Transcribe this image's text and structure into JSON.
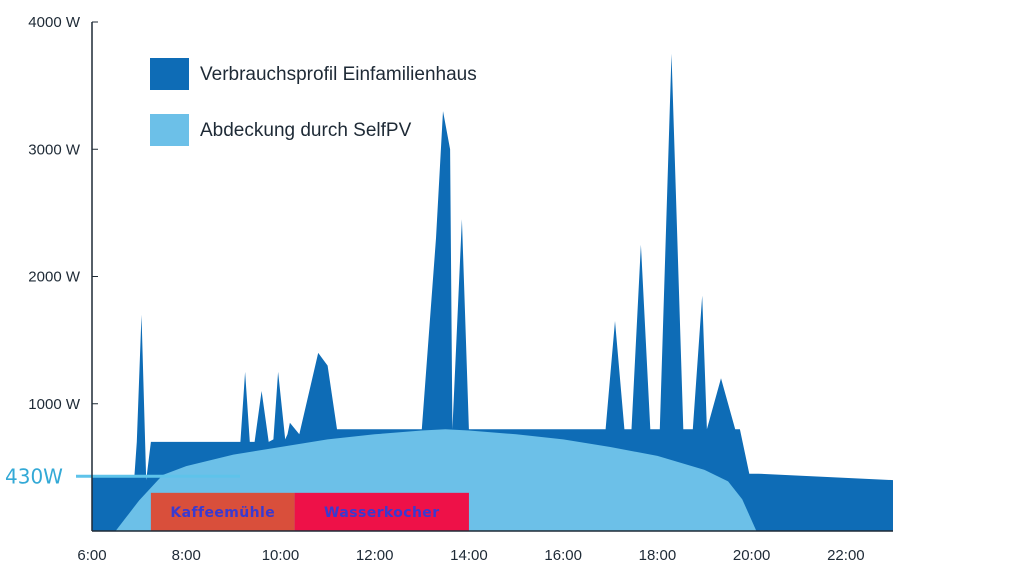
{
  "colors": {
    "consumption": "#0e6cb6",
    "coverage": "#6cc0e8",
    "axis": "#1e2a36",
    "reference_line": "#5ec3ea",
    "reference_text": "#33a9d6",
    "box_kaffeemuehle": "#d94f3b",
    "box_wasserkocher": "#ee1148",
    "box_text": "#3a3ad0"
  },
  "chart_data": {
    "type": "area",
    "title": "",
    "xlabel": "",
    "ylabel": "",
    "xlim": [
      6,
      23
    ],
    "ylim": [
      0,
      4000
    ],
    "grid": false,
    "legend_position": "top-left",
    "x_ticks": [
      "6:00",
      "8:00",
      "10:00",
      "12:00",
      "14:00",
      "16:00",
      "18:00",
      "20:00",
      "22:00"
    ],
    "x_tick_values": [
      6,
      8,
      10,
      12,
      14,
      16,
      18,
      20,
      22
    ],
    "y_ticks": [
      "4000 W",
      "3000 W",
      "2000 W",
      "1000 W"
    ],
    "y_tick_values": [
      4000,
      3000,
      2000,
      1000
    ],
    "legend": [
      {
        "label": "Verbrauchsprofil Einfamilienhaus",
        "color": "#0e6cb6"
      },
      {
        "label": "Abdeckung durch SelfPV",
        "color": "#6cc0e8"
      }
    ],
    "series": [
      {
        "name": "Verbrauchsprofil Einfamilienhaus",
        "x": [
          6.0,
          6.9,
          6.95,
          7.05,
          7.15,
          7.25,
          9.15,
          9.25,
          9.35,
          9.45,
          9.6,
          9.75,
          9.85,
          9.95,
          10.1,
          10.15,
          10.2,
          10.4,
          10.8,
          11.0,
          11.2,
          11.4,
          13.0,
          13.3,
          13.45,
          13.6,
          13.65,
          13.85,
          14.0,
          14.2,
          16.9,
          17.1,
          17.3,
          17.45,
          17.65,
          17.85,
          18.05,
          18.3,
          18.55,
          18.75,
          18.95,
          19.05,
          19.35,
          19.65,
          19.75,
          19.95,
          20.1,
          20.15,
          23.0
        ],
        "values": [
          430,
          430,
          700,
          1700,
          400,
          700,
          700,
          1250,
          700,
          700,
          1100,
          700,
          720,
          1250,
          720,
          760,
          850,
          760,
          1400,
          1300,
          800,
          800,
          800,
          2300,
          3300,
          3000,
          800,
          2450,
          800,
          800,
          800,
          1650,
          800,
          800,
          2250,
          800,
          800,
          3750,
          800,
          800,
          1850,
          800,
          1200,
          800,
          800,
          450,
          450,
          450,
          400
        ]
      },
      {
        "name": "Abdeckung durch SelfPV",
        "x": [
          6.5,
          7.0,
          7.5,
          8.0,
          9.0,
          10.0,
          11.0,
          12.0,
          13.0,
          13.5,
          14.0,
          15.0,
          16.0,
          17.0,
          18.0,
          19.0,
          19.5,
          19.8,
          20.1
        ],
        "values": [
          0,
          240,
          440,
          510,
          600,
          660,
          720,
          760,
          790,
          800,
          790,
          760,
          720,
          660,
          590,
          480,
          390,
          250,
          0
        ]
      }
    ],
    "reference_line": {
      "label": "430W",
      "value": 430
    },
    "annotations": [
      {
        "label": "Kaffeemühle",
        "x_start": 7.25,
        "x_end": 10.3,
        "y_bottom": 0,
        "y_top": 300
      },
      {
        "label": "Wasserkocher",
        "x_start": 10.3,
        "x_end": 14.0,
        "y_bottom": 0,
        "y_top": 300
      }
    ]
  }
}
